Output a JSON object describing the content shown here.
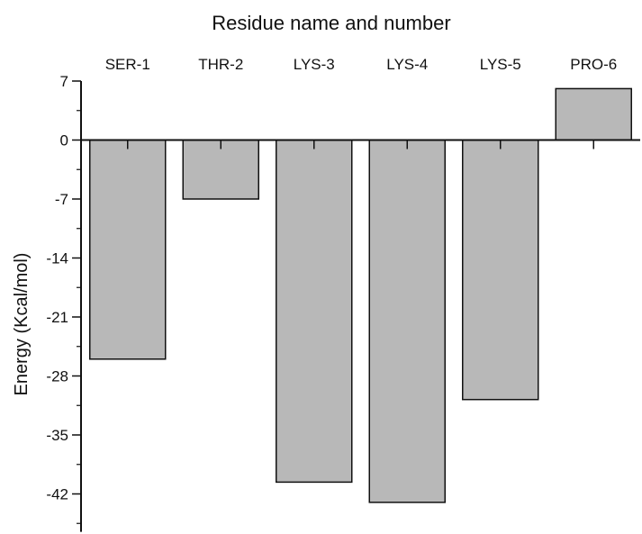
{
  "chart_data": {
    "type": "bar",
    "title": "Residue name and number",
    "xlabel": "",
    "ylabel": "Energy (Kcal/mol)",
    "categories": [
      "SER-1",
      "THR-2",
      "LYS-3",
      "LYS-4",
      "LYS-5",
      "PRO-6"
    ],
    "values": [
      -26.0,
      -7.0,
      -40.6,
      -43.0,
      -30.8,
      6.1
    ],
    "ylim": [
      -46.5,
      7
    ],
    "yticks": [
      7,
      0,
      -7,
      -14,
      -21,
      -28,
      -35,
      -42
    ],
    "ytick_labels": [
      "7",
      "0",
      "-7",
      "-14",
      "-21",
      "-28",
      "-35",
      "-42"
    ],
    "category_axis_position": "top",
    "grid": false,
    "legend": "none",
    "colors": {
      "bar_fill": "#b8b8b8",
      "bar_stroke": "#111111",
      "axis": "#111111"
    }
  }
}
